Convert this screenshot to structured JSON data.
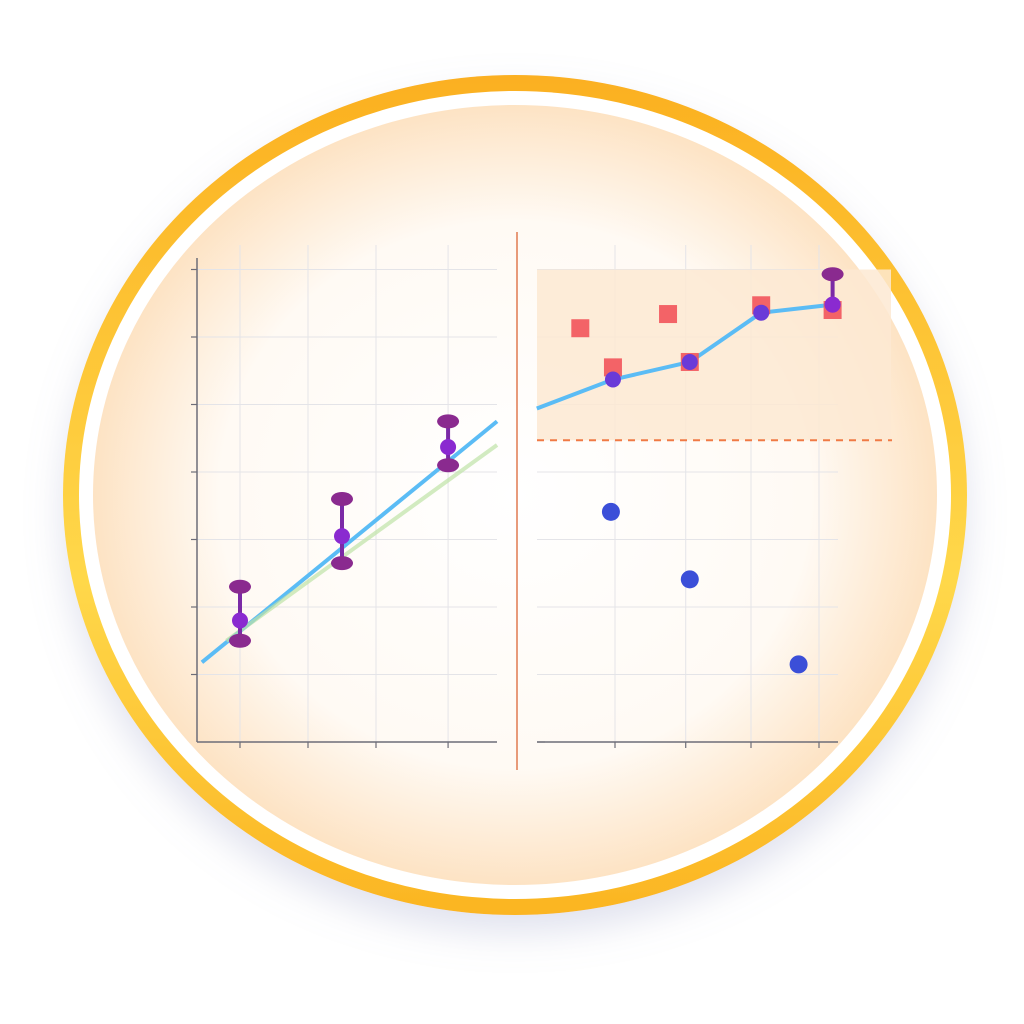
{
  "colors": {
    "ring_outer": "#fbb522",
    "ring_inner_glow": "#fde3c4",
    "grid": "#e4e4e8",
    "axis": "#6d6d78",
    "line": "#5bbcf5",
    "trend": "#bfe3a6",
    "error_marker": "#7b2aa6",
    "error_cap": "#8a2a8f",
    "square_marker": "#f2545b",
    "dot_marker": "#3b4fd8",
    "band": "#fde9d2",
    "threshold": "#f07a45",
    "divider": "#e07a50"
  },
  "chart_data": [
    {
      "type": "line",
      "title": "",
      "xlabel": "",
      "ylabel": "",
      "grid": true,
      "series": [
        {
          "kind": "line",
          "x": [
            0.44,
            4.78
          ],
          "y": [
            1.18,
            4.75
          ]
        },
        {
          "kind": "trend",
          "x": [
            0.8,
            4.78
          ],
          "y": [
            1.5,
            4.4
          ]
        },
        {
          "kind": "error",
          "x": [
            1,
            2.5,
            4.06
          ],
          "y": [
            1.8,
            3.05,
            4.37
          ],
          "err_low": [
            1.5,
            2.65,
            4.1
          ],
          "err_high": [
            2.3,
            3.6,
            4.75
          ]
        }
      ]
    },
    {
      "type": "scatter",
      "title": "",
      "xlabel": "",
      "ylabel": "",
      "grid": true,
      "band": [
        4.47,
        7.0
      ],
      "threshold": 4.47,
      "series": [
        {
          "kind": "line",
          "x": [
            -0.15,
            0.97,
            2.1,
            3.15,
            4.2
          ],
          "y": [
            4.94,
            5.37,
            5.63,
            6.36,
            6.48
          ]
        },
        {
          "kind": "squares",
          "x": [
            0.49,
            1.78,
            0.97,
            2.1,
            3.15,
            4.2
          ],
          "y": [
            6.13,
            6.34,
            5.55,
            5.63,
            6.47,
            6.4
          ]
        },
        {
          "kind": "line-points",
          "x": [
            0.97,
            2.1,
            3.15,
            4.2
          ],
          "y": [
            5.37,
            5.63,
            6.36,
            6.48
          ]
        },
        {
          "kind": "dots",
          "x": [
            0.94,
            2.1,
            3.7
          ],
          "y": [
            3.41,
            2.41,
            1.15
          ]
        },
        {
          "kind": "error",
          "x": [
            4.2
          ],
          "y": [
            6.48
          ],
          "err_high": [
            6.93
          ]
        }
      ]
    }
  ]
}
